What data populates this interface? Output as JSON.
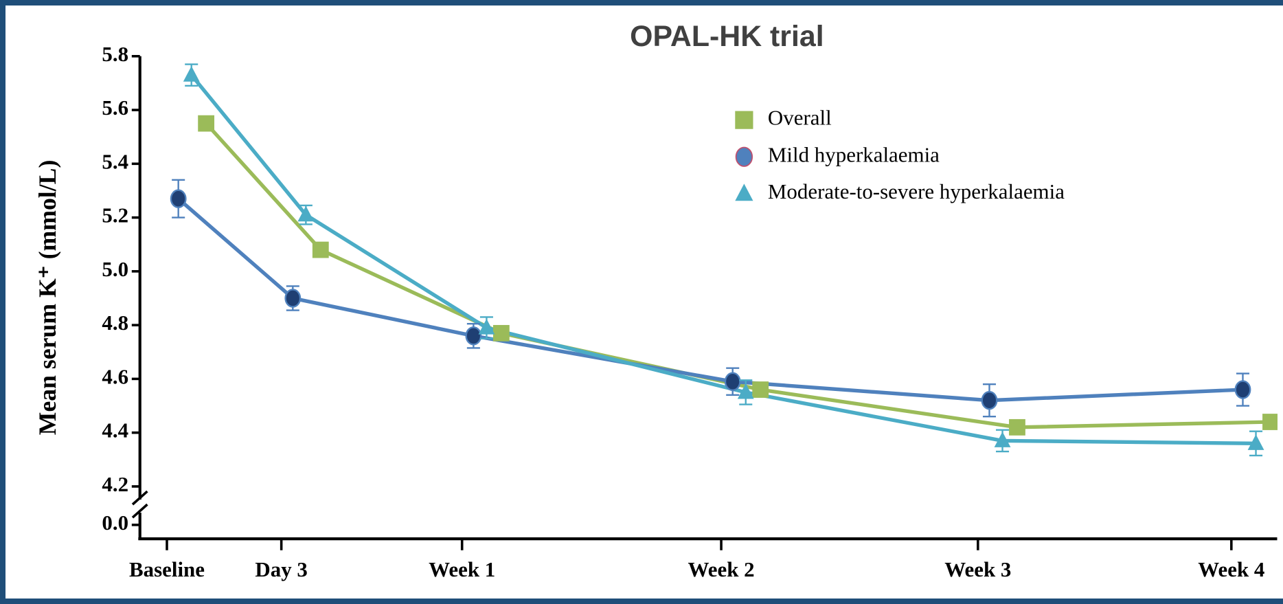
{
  "chart_data": {
    "type": "line",
    "title": "OPAL-HK trial",
    "y_label": "Mean serum K⁺ (mmol/L)",
    "categories": [
      "Baseline",
      "Day 3",
      "Week 1",
      "Week 2",
      "Week 3",
      "Week 4"
    ],
    "series": [
      {
        "name": "Overall",
        "color": "#9bbb59",
        "marker": "square",
        "marker_color": "#9bbb59",
        "values": [
          5.55,
          5.08,
          4.77,
          4.56,
          4.42,
          4.44
        ],
        "errors": [
          0.02,
          0.02,
          0.02,
          0.02,
          0.02,
          0.02
        ]
      },
      {
        "name": "Mild hyperkalaemia",
        "color": "#4f81bd",
        "marker": "circle",
        "marker_color": "#1f3f73",
        "values": [
          5.27,
          4.9,
          4.76,
          4.59,
          4.52,
          4.56
        ],
        "errors": [
          0.07,
          0.045,
          0.045,
          0.05,
          0.06,
          0.06
        ]
      },
      {
        "name": "Moderate-to-severe hyperkalaemia",
        "color": "#4bacc6",
        "marker": "triangle",
        "marker_color": "#4bacc6",
        "values": [
          5.73,
          5.21,
          4.79,
          4.55,
          4.37,
          4.36
        ],
        "errors": [
          0.04,
          0.035,
          0.04,
          0.045,
          0.04,
          0.045
        ]
      }
    ],
    "ylim": [
      4.2,
      5.8
    ],
    "yticks": [
      {
        "value": 0,
        "label": "0.0"
      },
      4.2,
      4.4,
      4.6,
      4.8,
      {
        "value": 5,
        "label": "5.0"
      },
      5.2,
      5.4,
      5.6,
      5.8
    ],
    "axis_break": true,
    "legend": "upper-center"
  }
}
